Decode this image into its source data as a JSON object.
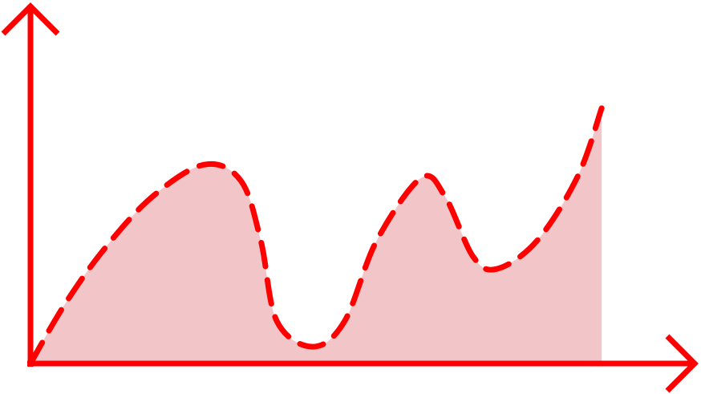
{
  "chart_data": {
    "type": "area",
    "x": [
      0,
      5.1,
      11.1,
      18.3,
      26.1,
      31.6,
      34.6,
      37.0,
      42.4,
      47.2,
      52.0,
      58.7,
      62.3,
      66.5,
      70.1,
      76.1,
      82.2,
      85.8
    ],
    "values": [
      0,
      16.4,
      32.1,
      46.7,
      55.7,
      51.2,
      34.4,
      11.9,
      4.7,
      11.9,
      34.4,
      52.0,
      46.7,
      29.9,
      26.5,
      34.4,
      52.4,
      71.5
    ],
    "color": "#ff0000",
    "fill_color": "#f2c6c8",
    "xlim": [
      0,
      100
    ],
    "ylim": [
      0,
      100
    ]
  }
}
